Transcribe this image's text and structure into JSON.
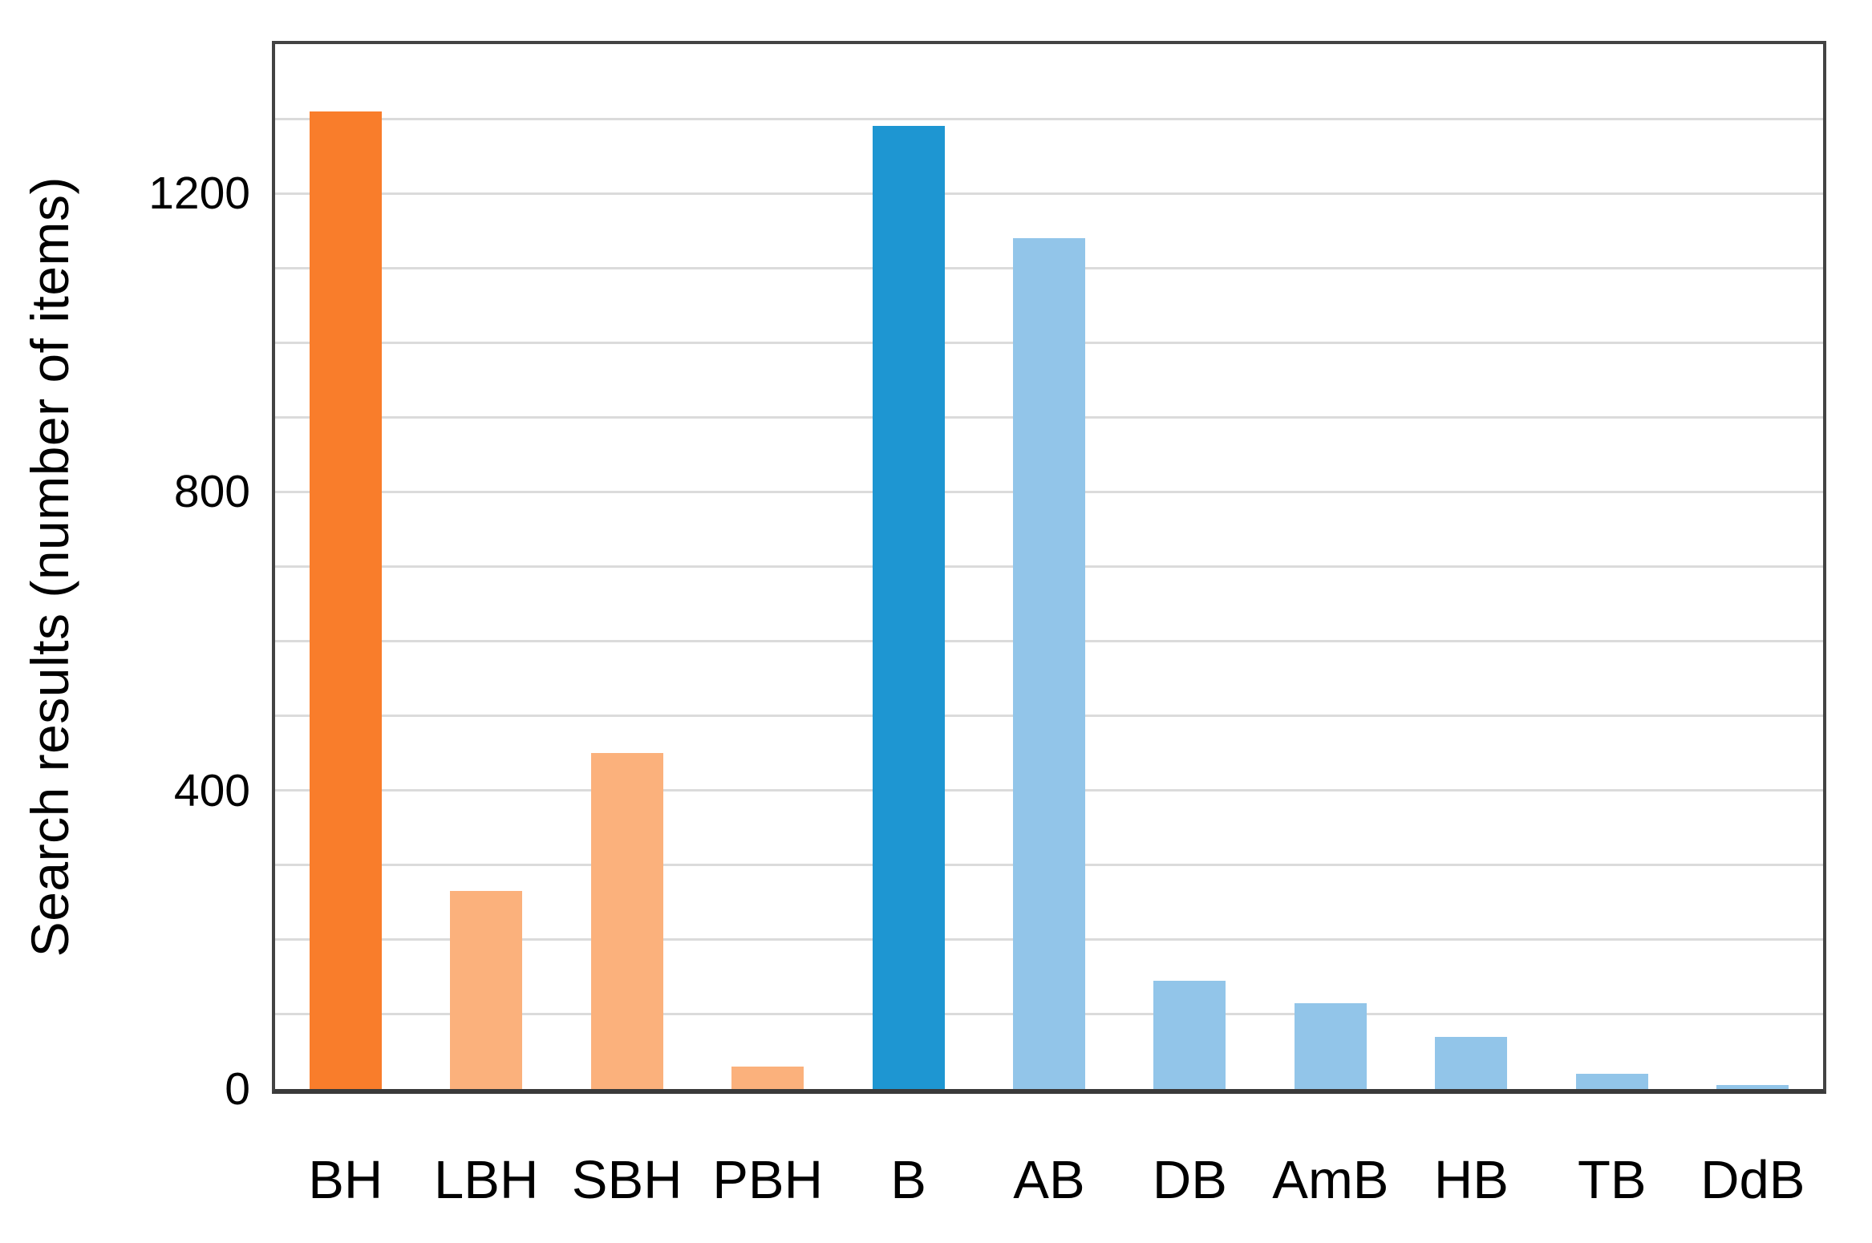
{
  "chart_data": {
    "type": "bar",
    "title": "",
    "xlabel": "",
    "ylabel": "Search results (number of items)",
    "categories": [
      "BH",
      "LBH",
      "SBH",
      "PBH",
      "B",
      "AB",
      "DB",
      "AmB",
      "HB",
      "TB",
      "DdB"
    ],
    "values": [
      1310,
      265,
      450,
      30,
      1290,
      1140,
      145,
      115,
      70,
      20,
      5
    ],
    "bar_colors": [
      "#F97D2B",
      "#FBB17C",
      "#FBB17C",
      "#FBB17C",
      "#1E96D2",
      "#92C5E9",
      "#92C5E9",
      "#92C5E9",
      "#92C5E9",
      "#92C5E9",
      "#92C5E9"
    ],
    "ylim": [
      0,
      1400
    ],
    "gridline_step": 100,
    "ytick_labels": [
      0,
      400,
      800,
      1200
    ],
    "grid": "horizontal",
    "legend": "none",
    "colors": {
      "dark_orange": "#F97D2B",
      "light_orange": "#FBB17C",
      "dark_blue": "#1E96D2",
      "light_blue": "#92C5E9",
      "gridline": "#DBDBDB",
      "axis_frame": "#434343",
      "text": "#000000",
      "background": "#FFFFFF"
    }
  }
}
